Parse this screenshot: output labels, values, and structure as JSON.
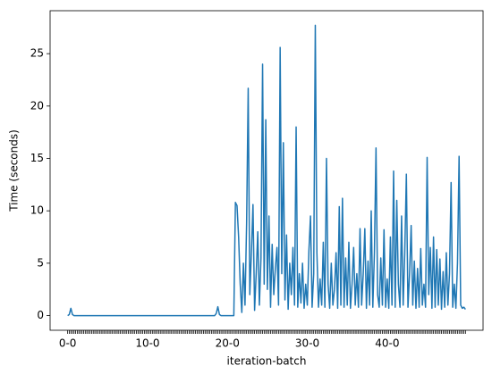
{
  "chart_data": {
    "type": "line",
    "x_label": "iteration-batch",
    "y_label": "Time (seconds)",
    "categories": [
      "0-0",
      null,
      null,
      null,
      null,
      null,
      null,
      null,
      null,
      null,
      null,
      null,
      null,
      null,
      null,
      null,
      null,
      null,
      null,
      null,
      null,
      null,
      null,
      null,
      null,
      null,
      null,
      null,
      null,
      null,
      null,
      null,
      null,
      null,
      null,
      null,
      null,
      null,
      null,
      null,
      null,
      null,
      null,
      null,
      null,
      null,
      null,
      null,
      null,
      null,
      "10-0",
      null,
      null,
      null,
      null,
      null,
      null,
      null,
      null,
      null,
      null,
      null,
      null,
      null,
      null,
      null,
      null,
      null,
      null,
      null,
      null,
      null,
      null,
      null,
      null,
      null,
      null,
      null,
      null,
      null,
      null,
      null,
      null,
      null,
      null,
      null,
      null,
      null,
      null,
      null,
      null,
      null,
      null,
      null,
      null,
      null,
      null,
      null,
      null,
      null,
      "20-0",
      null,
      null,
      null,
      null,
      null,
      null,
      null,
      null,
      null,
      null,
      null,
      null,
      null,
      null,
      null,
      null,
      null,
      null,
      null,
      null,
      null,
      null,
      null,
      null,
      null,
      null,
      null,
      null,
      null,
      null,
      null,
      null,
      null,
      null,
      null,
      null,
      null,
      null,
      null,
      null,
      null,
      null,
      null,
      null,
      null,
      null,
      null,
      null,
      null,
      "30-0",
      null,
      null,
      null,
      null,
      null,
      null,
      null,
      null,
      null,
      null,
      null,
      null,
      null,
      null,
      null,
      null,
      null,
      null,
      null,
      null,
      null,
      null,
      null,
      null,
      null,
      null,
      null,
      null,
      null,
      null,
      null,
      null,
      null,
      null,
      null,
      null,
      null,
      null,
      null,
      null,
      null,
      null,
      null,
      null,
      null,
      null,
      null,
      null,
      null,
      "40-0",
      null,
      null,
      null,
      null,
      null,
      null,
      null,
      null,
      null,
      null,
      null,
      null,
      null,
      null,
      null,
      null,
      null,
      null,
      null,
      null,
      null,
      null,
      null,
      null,
      null,
      null,
      null,
      null,
      null,
      null,
      null,
      null,
      null,
      null,
      null,
      null,
      null,
      null,
      null,
      null,
      null,
      null,
      null,
      null,
      null,
      null,
      null,
      null,
      null
    ],
    "series": [
      {
        "name": "time",
        "color": "#1f77b4",
        "values": [
          0,
          0.1,
          0.7,
          0.1,
          0,
          0,
          0,
          0,
          0,
          0,
          0,
          0,
          0,
          0,
          0,
          0,
          0,
          0,
          0,
          0,
          0,
          0,
          0,
          0,
          0,
          0,
          0,
          0,
          0,
          0,
          0,
          0,
          0,
          0,
          0,
          0,
          0,
          0,
          0,
          0,
          0,
          0,
          0,
          0,
          0,
          0,
          0,
          0,
          0,
          0,
          0,
          0,
          0,
          0,
          0,
          0,
          0,
          0,
          0,
          0,
          0,
          0,
          0,
          0,
          0,
          0,
          0,
          0,
          0,
          0,
          0,
          0,
          0,
          0,
          0,
          0,
          0,
          0,
          0,
          0,
          0,
          0,
          0,
          0,
          0,
          0,
          0,
          0,
          0,
          0,
          0,
          0,
          0,
          0.2,
          0.85,
          0.1,
          0,
          0,
          0,
          0,
          0,
          0,
          0,
          0,
          0,
          10.8,
          10.5,
          7.5,
          3,
          0.3,
          5,
          1,
          8.8,
          21.7,
          2,
          6,
          10.6,
          0.5,
          4,
          8,
          1,
          5.5,
          24,
          3,
          18.7,
          2.5,
          9.5,
          0.8,
          6.8,
          2,
          4.5,
          6.5,
          1,
          25.6,
          4,
          16.5,
          1.5,
          7.7,
          0.6,
          5,
          2,
          6.5,
          1,
          18,
          0.8,
          4,
          1.2,
          5,
          0.7,
          3,
          1,
          6.2,
          9.5,
          0.8,
          4,
          27.7,
          6,
          0.8,
          3.5,
          1,
          7,
          0.8,
          15,
          3,
          0.7,
          5,
          1,
          2.5,
          6,
          0.7,
          10.4,
          1,
          11.2,
          0.8,
          5.5,
          1,
          7,
          0.7,
          3,
          6.5,
          1,
          4,
          0.8,
          8.3,
          1,
          4,
          8.3,
          0.7,
          5.2,
          1,
          10,
          0.8,
          6,
          16,
          2,
          0.8,
          5.5,
          1,
          8.2,
          0.8,
          3.5,
          0.7,
          7.5,
          1,
          13.8,
          0.8,
          11,
          3,
          0.8,
          9.5,
          1,
          6,
          13.5,
          0.8,
          4,
          8.6,
          1,
          5.2,
          0.7,
          4.5,
          0.8,
          6.4,
          1,
          3,
          0.8,
          15.1,
          2,
          6.5,
          0.7,
          7.5,
          0.8,
          6.3,
          1,
          5.4,
          0.6,
          4.2,
          0.8,
          6,
          1,
          4,
          12.7,
          0.8,
          3,
          0.7,
          5,
          15.2,
          1,
          0.7,
          0.8,
          0.6
        ]
      }
    ],
    "ylim": [
      -1.4,
      29.1
    ],
    "yticks": [
      0,
      5,
      10,
      15,
      20,
      25
    ]
  }
}
